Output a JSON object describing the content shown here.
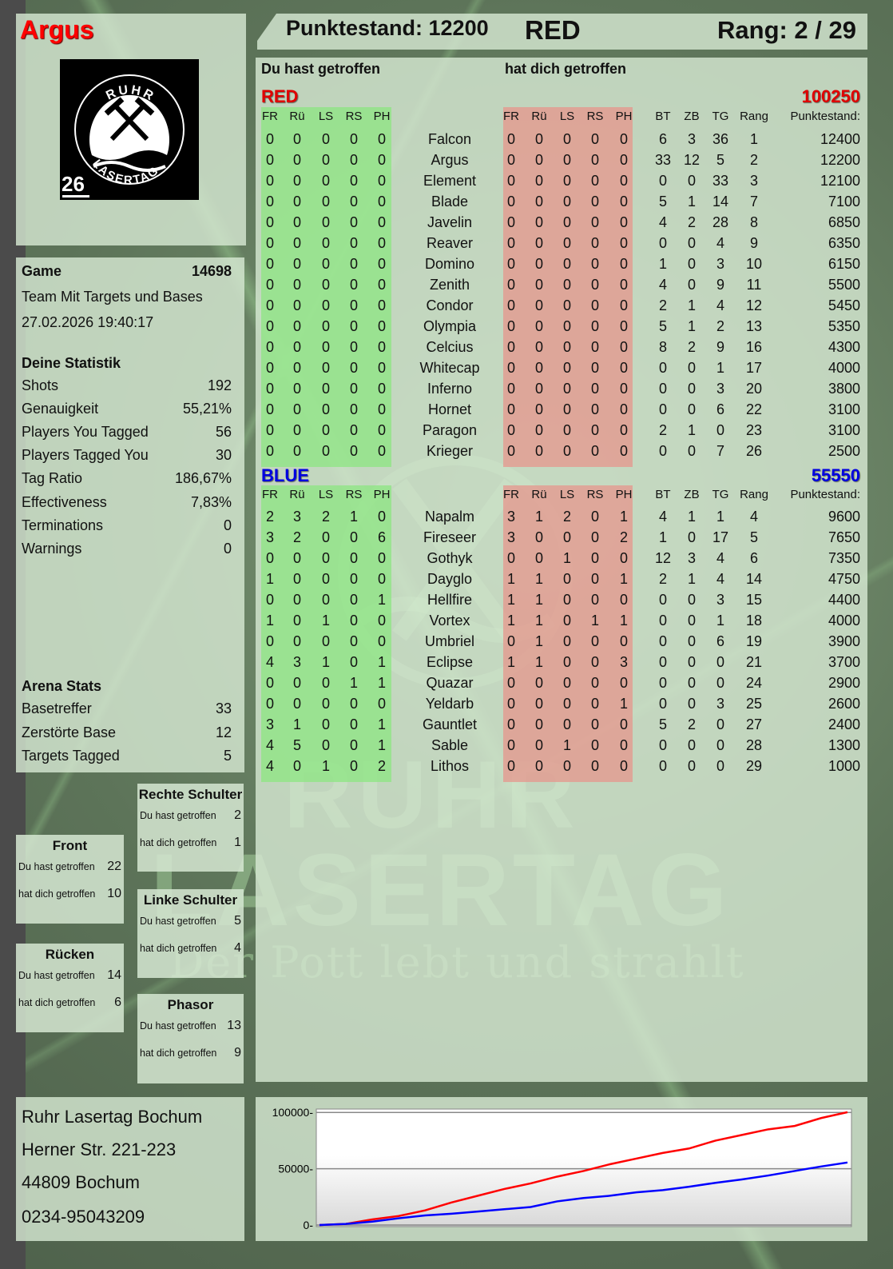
{
  "player": {
    "name": "Argus",
    "logo_text_top": "RUHR",
    "logo_text_bottom": "LASERTAG",
    "logo_number": "26"
  },
  "header": {
    "score_label": "Punktestand: 12200",
    "team": "RED",
    "rank_label": "Rang: 2 / 29"
  },
  "sections": {
    "hit_by_you": "Du hast getroffen",
    "hit_you": "hat dich getroffen"
  },
  "columns": {
    "zones": [
      "FR",
      "Rü",
      "LS",
      "RS",
      "PH"
    ],
    "stats": [
      "BT",
      "ZB",
      "TG",
      "Rang"
    ],
    "score": "Punktestand:"
  },
  "teams": [
    {
      "name": "RED",
      "color": "#e00000",
      "total": "100250",
      "players": [
        {
          "name": "Falcon",
          "hit": [
            0,
            0,
            0,
            0,
            0
          ],
          "got": [
            0,
            0,
            0,
            0,
            0
          ],
          "stats": [
            6,
            3,
            36,
            1
          ],
          "score": 12400
        },
        {
          "name": "Argus",
          "hit": [
            0,
            0,
            0,
            0,
            0
          ],
          "got": [
            0,
            0,
            0,
            0,
            0
          ],
          "stats": [
            33,
            12,
            5,
            2
          ],
          "score": 12200
        },
        {
          "name": "Element",
          "hit": [
            0,
            0,
            0,
            0,
            0
          ],
          "got": [
            0,
            0,
            0,
            0,
            0
          ],
          "stats": [
            0,
            0,
            33,
            3
          ],
          "score": 12100
        },
        {
          "name": "Blade",
          "hit": [
            0,
            0,
            0,
            0,
            0
          ],
          "got": [
            0,
            0,
            0,
            0,
            0
          ],
          "stats": [
            5,
            1,
            14,
            7
          ],
          "score": 7100
        },
        {
          "name": "Javelin",
          "hit": [
            0,
            0,
            0,
            0,
            0
          ],
          "got": [
            0,
            0,
            0,
            0,
            0
          ],
          "stats": [
            4,
            2,
            28,
            8
          ],
          "score": 6850
        },
        {
          "name": "Reaver",
          "hit": [
            0,
            0,
            0,
            0,
            0
          ],
          "got": [
            0,
            0,
            0,
            0,
            0
          ],
          "stats": [
            0,
            0,
            4,
            9
          ],
          "score": 6350
        },
        {
          "name": "Domino",
          "hit": [
            0,
            0,
            0,
            0,
            0
          ],
          "got": [
            0,
            0,
            0,
            0,
            0
          ],
          "stats": [
            1,
            0,
            3,
            10
          ],
          "score": 6150
        },
        {
          "name": "Zenith",
          "hit": [
            0,
            0,
            0,
            0,
            0
          ],
          "got": [
            0,
            0,
            0,
            0,
            0
          ],
          "stats": [
            4,
            0,
            9,
            11
          ],
          "score": 5500
        },
        {
          "name": "Condor",
          "hit": [
            0,
            0,
            0,
            0,
            0
          ],
          "got": [
            0,
            0,
            0,
            0,
            0
          ],
          "stats": [
            2,
            1,
            4,
            12
          ],
          "score": 5450
        },
        {
          "name": "Olympia",
          "hit": [
            0,
            0,
            0,
            0,
            0
          ],
          "got": [
            0,
            0,
            0,
            0,
            0
          ],
          "stats": [
            5,
            1,
            2,
            13
          ],
          "score": 5350
        },
        {
          "name": "Celcius",
          "hit": [
            0,
            0,
            0,
            0,
            0
          ],
          "got": [
            0,
            0,
            0,
            0,
            0
          ],
          "stats": [
            8,
            2,
            9,
            16
          ],
          "score": 4300
        },
        {
          "name": "Whitecap",
          "hit": [
            0,
            0,
            0,
            0,
            0
          ],
          "got": [
            0,
            0,
            0,
            0,
            0
          ],
          "stats": [
            0,
            0,
            1,
            17
          ],
          "score": 4000
        },
        {
          "name": "Inferno",
          "hit": [
            0,
            0,
            0,
            0,
            0
          ],
          "got": [
            0,
            0,
            0,
            0,
            0
          ],
          "stats": [
            0,
            0,
            3,
            20
          ],
          "score": 3800
        },
        {
          "name": "Hornet",
          "hit": [
            0,
            0,
            0,
            0,
            0
          ],
          "got": [
            0,
            0,
            0,
            0,
            0
          ],
          "stats": [
            0,
            0,
            6,
            22
          ],
          "score": 3100
        },
        {
          "name": "Paragon",
          "hit": [
            0,
            0,
            0,
            0,
            0
          ],
          "got": [
            0,
            0,
            0,
            0,
            0
          ],
          "stats": [
            2,
            1,
            0,
            23
          ],
          "score": 3100
        },
        {
          "name": "Krieger",
          "hit": [
            0,
            0,
            0,
            0,
            0
          ],
          "got": [
            0,
            0,
            0,
            0,
            0
          ],
          "stats": [
            0,
            0,
            7,
            26
          ],
          "score": 2500
        }
      ]
    },
    {
      "name": "BLUE",
      "color": "#0000e0",
      "total": "55550",
      "players": [
        {
          "name": "Napalm",
          "hit": [
            2,
            3,
            2,
            1,
            0
          ],
          "got": [
            3,
            1,
            2,
            0,
            1
          ],
          "stats": [
            4,
            1,
            1,
            4
          ],
          "score": 9600
        },
        {
          "name": "Fireseer",
          "hit": [
            3,
            2,
            0,
            0,
            6
          ],
          "got": [
            3,
            0,
            0,
            0,
            2
          ],
          "stats": [
            1,
            0,
            17,
            5
          ],
          "score": 7650
        },
        {
          "name": "Gothyk",
          "hit": [
            0,
            0,
            0,
            0,
            0
          ],
          "got": [
            0,
            0,
            1,
            0,
            0
          ],
          "stats": [
            12,
            3,
            4,
            6
          ],
          "score": 7350
        },
        {
          "name": "Dayglo",
          "hit": [
            1,
            0,
            0,
            0,
            0
          ],
          "got": [
            1,
            1,
            0,
            0,
            1
          ],
          "stats": [
            2,
            1,
            4,
            14
          ],
          "score": 4750
        },
        {
          "name": "Hellfire",
          "hit": [
            0,
            0,
            0,
            0,
            1
          ],
          "got": [
            1,
            1,
            0,
            0,
            0
          ],
          "stats": [
            0,
            0,
            3,
            15
          ],
          "score": 4400
        },
        {
          "name": "Vortex",
          "hit": [
            1,
            0,
            1,
            0,
            0
          ],
          "got": [
            1,
            1,
            0,
            1,
            1
          ],
          "stats": [
            0,
            0,
            1,
            18
          ],
          "score": 4000
        },
        {
          "name": "Umbriel",
          "hit": [
            0,
            0,
            0,
            0,
            0
          ],
          "got": [
            0,
            1,
            0,
            0,
            0
          ],
          "stats": [
            0,
            0,
            6,
            19
          ],
          "score": 3900
        },
        {
          "name": "Eclipse",
          "hit": [
            4,
            3,
            1,
            0,
            1
          ],
          "got": [
            1,
            1,
            0,
            0,
            3
          ],
          "stats": [
            0,
            0,
            0,
            21
          ],
          "score": 3700
        },
        {
          "name": "Quazar",
          "hit": [
            0,
            0,
            0,
            1,
            1
          ],
          "got": [
            0,
            0,
            0,
            0,
            0
          ],
          "stats": [
            0,
            0,
            0,
            24
          ],
          "score": 2900
        },
        {
          "name": "Yeldarb",
          "hit": [
            0,
            0,
            0,
            0,
            0
          ],
          "got": [
            0,
            0,
            0,
            0,
            1
          ],
          "stats": [
            0,
            0,
            3,
            25
          ],
          "score": 2600
        },
        {
          "name": "Gauntlet",
          "hit": [
            3,
            1,
            0,
            0,
            1
          ],
          "got": [
            0,
            0,
            0,
            0,
            0
          ],
          "stats": [
            5,
            2,
            0,
            27
          ],
          "score": 2400
        },
        {
          "name": "Sable",
          "hit": [
            4,
            5,
            0,
            0,
            1
          ],
          "got": [
            0,
            0,
            1,
            0,
            0
          ],
          "stats": [
            0,
            0,
            0,
            28
          ],
          "score": 1300
        },
        {
          "name": "Lithos",
          "hit": [
            4,
            0,
            1,
            0,
            2
          ],
          "got": [
            0,
            0,
            0,
            0,
            0
          ],
          "stats": [
            0,
            0,
            0,
            29
          ],
          "score": 1000
        }
      ]
    }
  ],
  "game": {
    "label": "Game",
    "number": "14698",
    "mode": "Team Mit Targets und Bases",
    "datetime": "27.02.2026 19:40:17"
  },
  "stats": {
    "title": "Deine Statistik",
    "rows": [
      {
        "label": "Shots",
        "value": "192"
      },
      {
        "label": "Genauigkeit",
        "value": "55,21%"
      },
      {
        "label": "Players You Tagged",
        "value": "56"
      },
      {
        "label": "Players Tagged You",
        "value": "30"
      },
      {
        "label": "Tag Ratio",
        "value": "186,67%"
      },
      {
        "label": "Effectiveness",
        "value": "7,83%"
      },
      {
        "label": "Terminations",
        "value": "0"
      },
      {
        "label": "Warnings",
        "value": "0"
      }
    ]
  },
  "arena": {
    "title": "Arena Stats",
    "rows": [
      {
        "label": "Basetreffer",
        "value": "33"
      },
      {
        "label": "Zerstörte Base",
        "value": "12"
      },
      {
        "label": "Targets Tagged",
        "value": "5"
      }
    ]
  },
  "hitboxes": [
    {
      "title": "Rechte Schulter",
      "hit_label": "Du hast getroffen",
      "hit": "2",
      "got_label": "hat dich getroffen",
      "got": "1"
    },
    {
      "title": "Front",
      "hit_label": "Du hast getroffen",
      "hit": "22",
      "got_label": "hat dich getroffen",
      "got": "10"
    },
    {
      "title": "Linke Schulter",
      "hit_label": "Du hast getroffen",
      "hit": "5",
      "got_label": "hat dich getroffen",
      "got": "4"
    },
    {
      "title": "Rücken",
      "hit_label": "Du hast getroffen",
      "hit": "14",
      "got_label": "hat dich getroffen",
      "got": "6"
    },
    {
      "title": "Phasor",
      "hit_label": "Du hast getroffen",
      "hit": "13",
      "got_label": "hat dich getroffen",
      "got": "9"
    }
  ],
  "address": [
    "Ruhr Lasertag Bochum",
    "Herner Str. 221-223",
    "44809 Bochum",
    "0234-95043209"
  ],
  "watermark": {
    "line1": "RUHR",
    "line2": "LASERTAG",
    "tagline": "Der Pott lebt und strahlt"
  },
  "chart_data": {
    "type": "line",
    "title": "",
    "xlabel": "",
    "ylabel": "",
    "ylim": [
      0,
      103000
    ],
    "yticks": [
      0,
      50000,
      100000
    ],
    "grid": true,
    "series": [
      {
        "color": "#ff0000",
        "values": [
          0,
          1000,
          5000,
          8000,
          13000,
          20000,
          26000,
          32000,
          37000,
          43000,
          48000,
          54000,
          59000,
          64000,
          68000,
          75000,
          80000,
          85000,
          88000,
          95000,
          100250
        ]
      },
      {
        "color": "#0000ff",
        "values": [
          0,
          1000,
          3000,
          6000,
          8500,
          10000,
          12000,
          14000,
          16000,
          21000,
          24000,
          26000,
          29000,
          31000,
          34000,
          37500,
          40500,
          44000,
          48000,
          52000,
          55550
        ]
      }
    ]
  }
}
